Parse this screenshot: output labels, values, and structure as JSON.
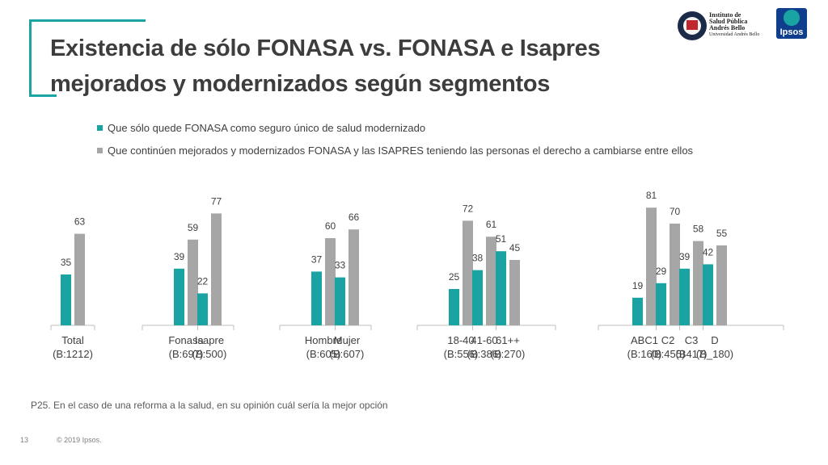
{
  "title": {
    "line1": "Existencia de sólo FONASA vs. FONASA e Isapres",
    "line2": "mejorados y modernizados según segmentos"
  },
  "logos": {
    "institute_line1": "Instituto de",
    "institute_line2": "Salud Pública",
    "institute_line3": "Andrés Bello",
    "institute_line4": "Universidad Andrés Bello",
    "ipsos": "Ipsos"
  },
  "colors": {
    "accent": "#1aa3a3",
    "series1": "#1aa3a3",
    "series2": "#a6a6a6",
    "axis": "#bfbfbf",
    "text": "#404040"
  },
  "chart_data": {
    "type": "bar",
    "title": "",
    "xlabel": "",
    "ylabel": "",
    "ylim": [
      0,
      100
    ],
    "grid": false,
    "legend_position": "top-left",
    "categories": [
      {
        "label": "Total",
        "base": "(B:1212)"
      },
      {
        "label": "Fonasa",
        "base": "(B:697)"
      },
      {
        "label": "Isapre",
        "base": "(B:500)"
      },
      {
        "label": "Hombre",
        "base": "(B:605)"
      },
      {
        "label": "Mujer",
        "base": "(B:607)"
      },
      {
        "label": "18-40",
        "base": "(B:556)"
      },
      {
        "label": "41-60",
        "base": "(B:386)"
      },
      {
        "label": "61++",
        "base": "(B:270)"
      },
      {
        "label": "ABC1",
        "base": "(B:160)"
      },
      {
        "label": "C2",
        "base": "(B:455)"
      },
      {
        "label": "C3",
        "base": "(B417)"
      },
      {
        "label": "D",
        "base": "(B_180)"
      }
    ],
    "groups": [
      [
        0
      ],
      [
        1,
        2
      ],
      [
        3,
        4
      ],
      [
        5,
        6,
        7
      ],
      [
        8,
        9,
        10,
        11
      ]
    ],
    "series": [
      {
        "name": "Que sólo quede FONASA como seguro único de salud modernizado",
        "color": "#1aa3a3",
        "values": [
          35,
          39,
          22,
          37,
          33,
          25,
          38,
          51,
          19,
          29,
          39,
          42
        ]
      },
      {
        "name": "Que continúen mejorados y modernizados FONASA y las ISAPRES teniendo las personas el derecho a cambiarse entre ellos",
        "color": "#a6a6a6",
        "values": [
          63,
          59,
          77,
          60,
          66,
          72,
          61,
          45,
          81,
          70,
          58,
          55
        ]
      }
    ]
  },
  "footnote": "P25. En el caso de una reforma a la salud, en su opinión cuál sería la mejor opción",
  "page_number": "13",
  "copyright": "© 2019 Ipsos."
}
